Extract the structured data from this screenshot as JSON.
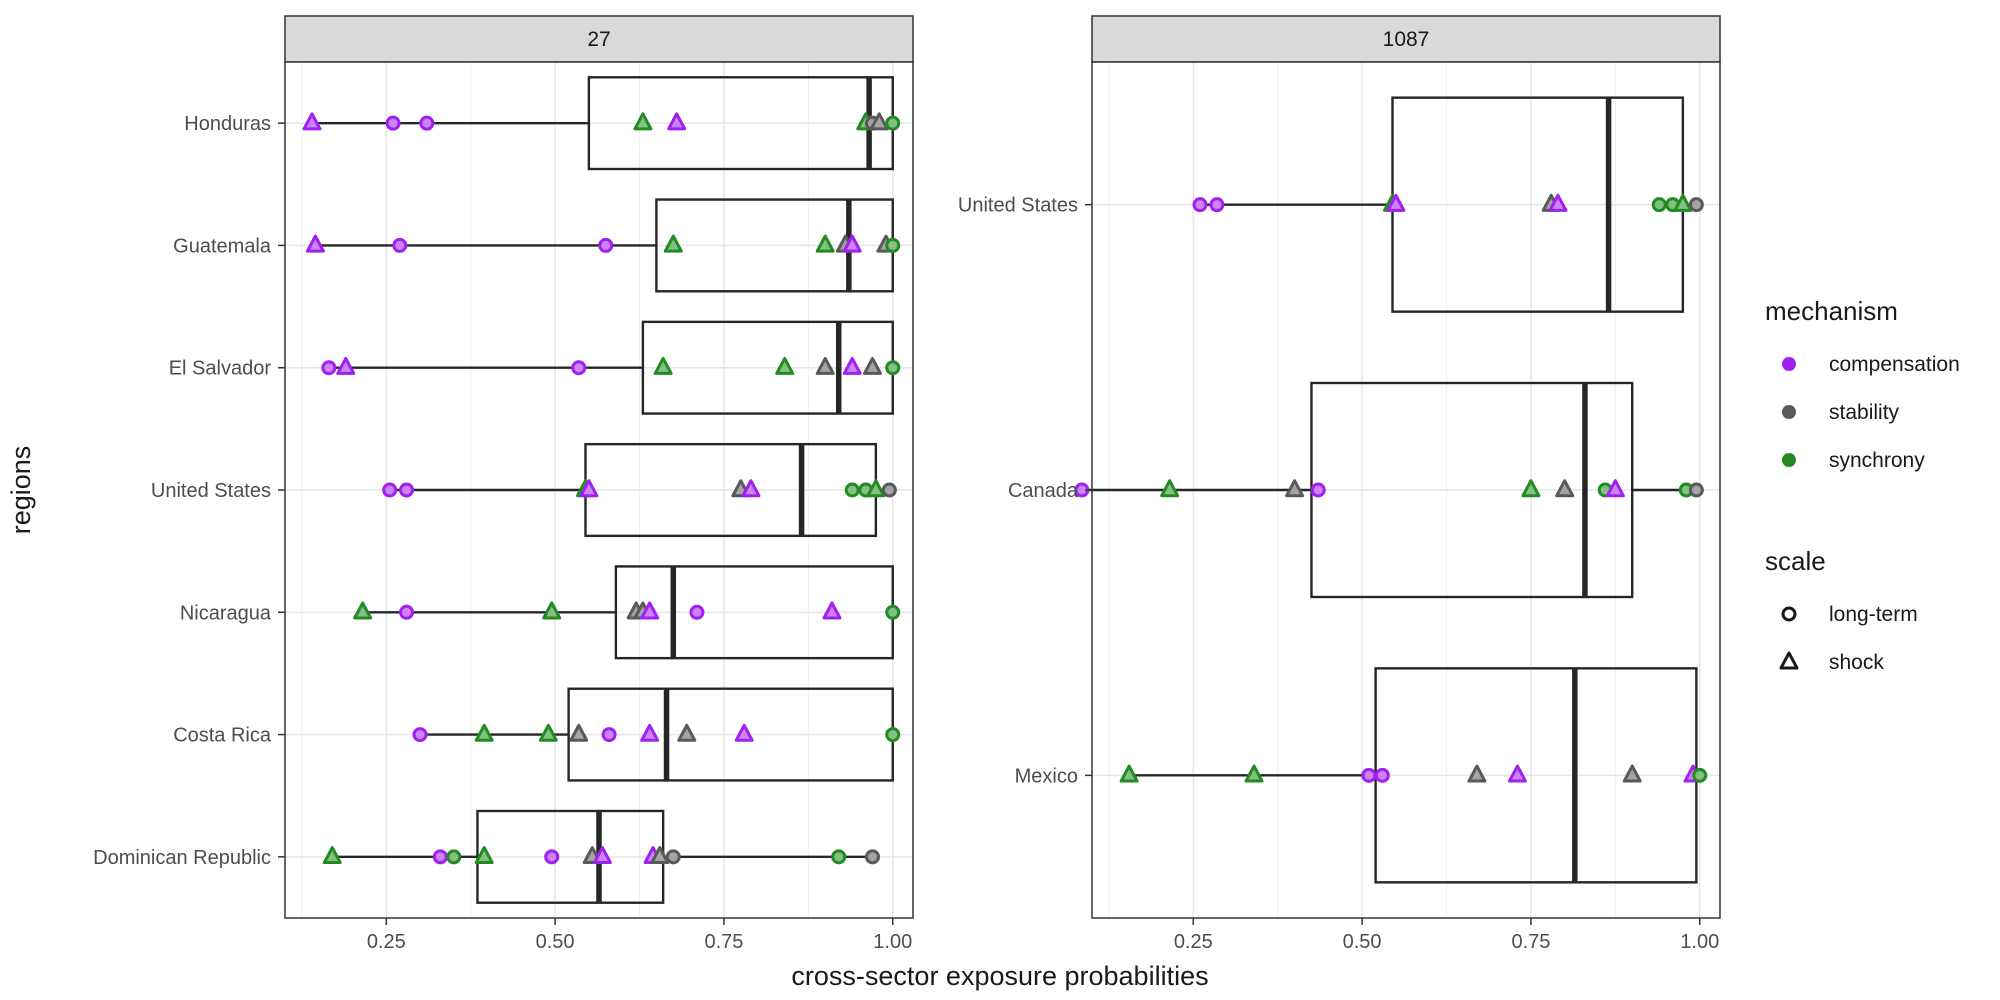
{
  "chart_data": {
    "type": "box-with-points",
    "xlabel": "cross-sector exposure probabilities",
    "ylabel": "regions",
    "xlim": [
      0.1,
      1.03
    ],
    "x_ticks": [
      "0.25",
      "0.50",
      "0.75",
      "1.00"
    ],
    "grid": true,
    "legend_placement": "right",
    "legends": {
      "mechanism": {
        "title": "mechanism",
        "items": [
          {
            "label": "compensation",
            "color": "#a020f0"
          },
          {
            "label": "stability",
            "color": "#595959"
          },
          {
            "label": "synchrony",
            "color": "#228b22"
          }
        ]
      },
      "scale": {
        "title": "scale",
        "items": [
          {
            "label": "long-term",
            "shape": "circle"
          },
          {
            "label": "shock",
            "shape": "triangle"
          }
        ]
      }
    },
    "panels": [
      {
        "strip": "27",
        "regions": [
          {
            "name": "Honduras",
            "box": {
              "min": 0.14,
              "q1": 0.55,
              "median": 0.965,
              "q3": 1.0,
              "max": 1.0
            },
            "points": [
              {
                "x": 0.14,
                "m": "compensation",
                "s": "shock"
              },
              {
                "x": 0.26,
                "m": "compensation",
                "s": "long-term"
              },
              {
                "x": 0.31,
                "m": "compensation",
                "s": "long-term"
              },
              {
                "x": 0.63,
                "m": "synchrony",
                "s": "shock"
              },
              {
                "x": 0.68,
                "m": "compensation",
                "s": "shock"
              },
              {
                "x": 0.96,
                "m": "synchrony",
                "s": "shock"
              },
              {
                "x": 0.97,
                "m": "stability",
                "s": "long-term"
              },
              {
                "x": 0.98,
                "m": "stability",
                "s": "shock"
              },
              {
                "x": 1.0,
                "m": "synchrony",
                "s": "long-term"
              }
            ]
          },
          {
            "name": "Guatemala",
            "box": {
              "min": 0.145,
              "q1": 0.65,
              "median": 0.935,
              "q3": 1.0,
              "max": 1.0
            },
            "points": [
              {
                "x": 0.145,
                "m": "compensation",
                "s": "shock"
              },
              {
                "x": 0.27,
                "m": "compensation",
                "s": "long-term"
              },
              {
                "x": 0.575,
                "m": "compensation",
                "s": "long-term"
              },
              {
                "x": 0.675,
                "m": "synchrony",
                "s": "shock"
              },
              {
                "x": 0.9,
                "m": "synchrony",
                "s": "shock"
              },
              {
                "x": 0.93,
                "m": "stability",
                "s": "shock"
              },
              {
                "x": 0.94,
                "m": "compensation",
                "s": "shock"
              },
              {
                "x": 0.99,
                "m": "stability",
                "s": "shock"
              },
              {
                "x": 1.0,
                "m": "synchrony",
                "s": "long-term"
              }
            ]
          },
          {
            "name": "El Salvador",
            "box": {
              "min": 0.165,
              "q1": 0.63,
              "median": 0.92,
              "q3": 1.0,
              "max": 1.0
            },
            "points": [
              {
                "x": 0.165,
                "m": "compensation",
                "s": "long-term"
              },
              {
                "x": 0.19,
                "m": "compensation",
                "s": "shock"
              },
              {
                "x": 0.535,
                "m": "compensation",
                "s": "long-term"
              },
              {
                "x": 0.66,
                "m": "synchrony",
                "s": "shock"
              },
              {
                "x": 0.84,
                "m": "synchrony",
                "s": "shock"
              },
              {
                "x": 0.9,
                "m": "stability",
                "s": "shock"
              },
              {
                "x": 0.94,
                "m": "compensation",
                "s": "shock"
              },
              {
                "x": 0.97,
                "m": "stability",
                "s": "shock"
              },
              {
                "x": 1.0,
                "m": "synchrony",
                "s": "long-term"
              }
            ]
          },
          {
            "name": "United States",
            "box": {
              "min": 0.255,
              "q1": 0.545,
              "median": 0.865,
              "q3": 0.975,
              "max": 1.0
            },
            "points": [
              {
                "x": 0.255,
                "m": "compensation",
                "s": "long-term"
              },
              {
                "x": 0.28,
                "m": "compensation",
                "s": "long-term"
              },
              {
                "x": 0.545,
                "m": "synchrony",
                "s": "shock"
              },
              {
                "x": 0.55,
                "m": "compensation",
                "s": "shock"
              },
              {
                "x": 0.775,
                "m": "stability",
                "s": "shock"
              },
              {
                "x": 0.79,
                "m": "compensation",
                "s": "shock"
              },
              {
                "x": 0.94,
                "m": "synchrony",
                "s": "long-term"
              },
              {
                "x": 0.96,
                "m": "synchrony",
                "s": "long-term"
              },
              {
                "x": 0.975,
                "m": "synchrony",
                "s": "shock"
              },
              {
                "x": 0.995,
                "m": "stability",
                "s": "long-term"
              }
            ]
          },
          {
            "name": "Nicaragua",
            "box": {
              "min": 0.215,
              "q1": 0.59,
              "median": 0.675,
              "q3": 1.0,
              "max": 1.0
            },
            "points": [
              {
                "x": 0.215,
                "m": "synchrony",
                "s": "shock"
              },
              {
                "x": 0.28,
                "m": "compensation",
                "s": "long-term"
              },
              {
                "x": 0.495,
                "m": "synchrony",
                "s": "shock"
              },
              {
                "x": 0.62,
                "m": "stability",
                "s": "shock"
              },
              {
                "x": 0.63,
                "m": "stability",
                "s": "shock"
              },
              {
                "x": 0.64,
                "m": "compensation",
                "s": "shock"
              },
              {
                "x": 0.71,
                "m": "compensation",
                "s": "long-term"
              },
              {
                "x": 0.91,
                "m": "compensation",
                "s": "shock"
              },
              {
                "x": 1.0,
                "m": "synchrony",
                "s": "long-term"
              }
            ]
          },
          {
            "name": "Costa Rica",
            "box": {
              "min": 0.3,
              "q1": 0.52,
              "median": 0.665,
              "q3": 1.0,
              "max": 1.0
            },
            "points": [
              {
                "x": 0.3,
                "m": "compensation",
                "s": "long-term"
              },
              {
                "x": 0.395,
                "m": "synchrony",
                "s": "shock"
              },
              {
                "x": 0.49,
                "m": "synchrony",
                "s": "shock"
              },
              {
                "x": 0.535,
                "m": "stability",
                "s": "shock"
              },
              {
                "x": 0.58,
                "m": "compensation",
                "s": "long-term"
              },
              {
                "x": 0.64,
                "m": "compensation",
                "s": "shock"
              },
              {
                "x": 0.695,
                "m": "stability",
                "s": "shock"
              },
              {
                "x": 0.78,
                "m": "compensation",
                "s": "shock"
              },
              {
                "x": 1.0,
                "m": "synchrony",
                "s": "long-term"
              }
            ]
          },
          {
            "name": "Dominican Republic",
            "box": {
              "min": 0.17,
              "q1": 0.385,
              "median": 0.565,
              "q3": 0.66,
              "max": 0.97
            },
            "points": [
              {
                "x": 0.17,
                "m": "synchrony",
                "s": "shock"
              },
              {
                "x": 0.33,
                "m": "compensation",
                "s": "long-term"
              },
              {
                "x": 0.35,
                "m": "synchrony",
                "s": "long-term"
              },
              {
                "x": 0.395,
                "m": "synchrony",
                "s": "shock"
              },
              {
                "x": 0.495,
                "m": "compensation",
                "s": "long-term"
              },
              {
                "x": 0.555,
                "m": "stability",
                "s": "shock"
              },
              {
                "x": 0.57,
                "m": "compensation",
                "s": "shock"
              },
              {
                "x": 0.645,
                "m": "compensation",
                "s": "shock"
              },
              {
                "x": 0.655,
                "m": "stability",
                "s": "shock"
              },
              {
                "x": 0.675,
                "m": "stability",
                "s": "long-term"
              },
              {
                "x": 0.92,
                "m": "synchrony",
                "s": "long-term"
              },
              {
                "x": 0.97,
                "m": "stability",
                "s": "long-term"
              }
            ]
          }
        ]
      },
      {
        "strip": "1087",
        "regions": [
          {
            "name": "United States",
            "box": {
              "min": 0.26,
              "q1": 0.545,
              "median": 0.865,
              "q3": 0.975,
              "max": 1.0
            },
            "points": [
              {
                "x": 0.26,
                "m": "compensation",
                "s": "long-term"
              },
              {
                "x": 0.285,
                "m": "compensation",
                "s": "long-term"
              },
              {
                "x": 0.545,
                "m": "synchrony",
                "s": "shock"
              },
              {
                "x": 0.55,
                "m": "compensation",
                "s": "shock"
              },
              {
                "x": 0.78,
                "m": "stability",
                "s": "shock"
              },
              {
                "x": 0.79,
                "m": "compensation",
                "s": "shock"
              },
              {
                "x": 0.94,
                "m": "synchrony",
                "s": "long-term"
              },
              {
                "x": 0.96,
                "m": "synchrony",
                "s": "long-term"
              },
              {
                "x": 0.975,
                "m": "synchrony",
                "s": "shock"
              },
              {
                "x": 0.995,
                "m": "stability",
                "s": "long-term"
              }
            ]
          },
          {
            "name": "Canada",
            "box": {
              "min": 0.085,
              "q1": 0.425,
              "median": 0.83,
              "q3": 0.9,
              "max": 1.0
            },
            "points": [
              {
                "x": 0.085,
                "m": "compensation",
                "s": "long-term"
              },
              {
                "x": 0.215,
                "m": "synchrony",
                "s": "shock"
              },
              {
                "x": 0.4,
                "m": "stability",
                "s": "shock"
              },
              {
                "x": 0.435,
                "m": "compensation",
                "s": "long-term"
              },
              {
                "x": 0.75,
                "m": "synchrony",
                "s": "shock"
              },
              {
                "x": 0.8,
                "m": "stability",
                "s": "shock"
              },
              {
                "x": 0.86,
                "m": "synchrony",
                "s": "long-term"
              },
              {
                "x": 0.875,
                "m": "compensation",
                "s": "shock"
              },
              {
                "x": 0.98,
                "m": "synchrony",
                "s": "long-term"
              },
              {
                "x": 0.995,
                "m": "stability",
                "s": "long-term"
              }
            ]
          },
          {
            "name": "Mexico",
            "box": {
              "min": 0.155,
              "q1": 0.52,
              "median": 0.815,
              "q3": 0.995,
              "max": 1.0
            },
            "points": [
              {
                "x": 0.155,
                "m": "synchrony",
                "s": "shock"
              },
              {
                "x": 0.34,
                "m": "synchrony",
                "s": "shock"
              },
              {
                "x": 0.51,
                "m": "compensation",
                "s": "long-term"
              },
              {
                "x": 0.53,
                "m": "compensation",
                "s": "long-term"
              },
              {
                "x": 0.67,
                "m": "stability",
                "s": "shock"
              },
              {
                "x": 0.73,
                "m": "compensation",
                "s": "shock"
              },
              {
                "x": 0.9,
                "m": "stability",
                "s": "shock"
              },
              {
                "x": 0.99,
                "m": "compensation",
                "s": "shock"
              },
              {
                "x": 1.0,
                "m": "synchrony",
                "s": "long-term"
              }
            ]
          }
        ]
      }
    ]
  }
}
